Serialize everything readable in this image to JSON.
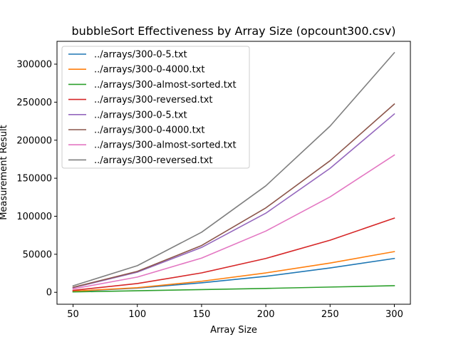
{
  "chart_data": {
    "type": "line",
    "title": "bubbleSort Effectiveness by Array Size (opcount300.csv)",
    "xlabel": "Array Size",
    "ylabel": "Measurement Result",
    "x": [
      50,
      100,
      150,
      200,
      250,
      300
    ],
    "xlim": [
      37.5,
      312.5
    ],
    "ylim": [
      -15700,
      330000
    ],
    "xticks": [
      50,
      100,
      150,
      200,
      250,
      300
    ],
    "yticks": [
      0,
      50000,
      100000,
      150000,
      200000,
      250000,
      300000
    ],
    "grid": false,
    "legend_position": "upper-left",
    "series": [
      {
        "name": "../arrays/300-0-5.txt",
        "color": "#1f77b4",
        "values": [
          1200,
          5500,
          12500,
          21000,
          32000,
          44500
        ]
      },
      {
        "name": "../arrays/300-0-4000.txt",
        "color": "#ff7f0e",
        "values": [
          1500,
          6000,
          14500,
          25500,
          38500,
          53500
        ]
      },
      {
        "name": "../arrays/300-almost-sorted.txt",
        "color": "#2ca02c",
        "values": [
          500,
          2000,
          3600,
          5100,
          6900,
          8700
        ]
      },
      {
        "name": "../arrays/300-reversed.txt",
        "color": "#d62728",
        "values": [
          2500,
          11500,
          25500,
          44500,
          68500,
          97500
        ]
      },
      {
        "name": "../arrays/300-0-5.txt",
        "color": "#9467bd",
        "values": [
          6000,
          26500,
          59000,
          104000,
          163000,
          234500
        ]
      },
      {
        "name": "../arrays/300-0-4000.txt",
        "color": "#8c564b",
        "values": [
          6500,
          27500,
          61500,
          111000,
          173000,
          247500
        ]
      },
      {
        "name": "../arrays/300-almost-sorted.txt",
        "color": "#e377c2",
        "values": [
          4500,
          20000,
          45000,
          80500,
          125500,
          180500
        ]
      },
      {
        "name": "../arrays/300-reversed.txt",
        "color": "#7f7f7f",
        "values": [
          8500,
          35000,
          79000,
          140000,
          218500,
          315000
        ]
      }
    ]
  }
}
